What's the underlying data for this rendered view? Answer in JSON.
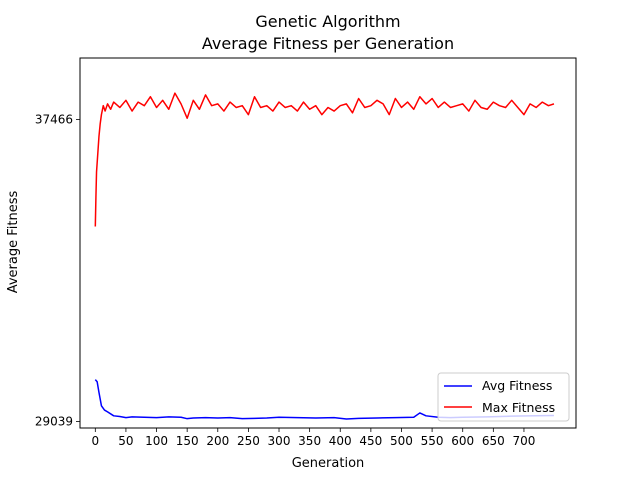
{
  "chart_data": {
    "type": "line",
    "title": "Genetic Algorithm",
    "subtitle": "Average Fitness per Generation",
    "xlabel": "Generation",
    "ylabel": "Average Fitness",
    "xlim": [
      -25,
      785
    ],
    "ylim": [
      28860,
      39180
    ],
    "x_ticks": [
      0,
      50,
      100,
      150,
      200,
      250,
      300,
      350,
      400,
      450,
      500,
      550,
      600,
      650,
      700
    ],
    "x_tick_labels": [
      "0",
      "50",
      "100",
      "150",
      "200",
      "250",
      "300",
      "350",
      "400",
      "450",
      "500",
      "550",
      "600",
      "650",
      "700"
    ],
    "y_ticks": [
      29039,
      37466
    ],
    "y_tick_labels": [
      "29039",
      "37466"
    ],
    "grid": false,
    "legend": "lower-right",
    "series": [
      {
        "name": "Avg Fitness",
        "color": "#0000ff",
        "x": [
          0,
          3,
          6,
          10,
          15,
          20,
          30,
          40,
          50,
          60,
          80,
          100,
          120,
          140,
          150,
          160,
          180,
          200,
          220,
          240,
          260,
          280,
          300,
          330,
          360,
          390,
          410,
          430,
          460,
          490,
          520,
          530,
          540,
          560,
          580,
          600,
          640,
          680,
          720,
          749
        ],
        "y": [
          30210,
          30150,
          29850,
          29480,
          29360,
          29310,
          29200,
          29180,
          29150,
          29170,
          29160,
          29150,
          29170,
          29160,
          29120,
          29140,
          29150,
          29140,
          29150,
          29120,
          29130,
          29140,
          29160,
          29150,
          29140,
          29150,
          29110,
          29130,
          29140,
          29150,
          29160,
          29280,
          29200,
          29160,
          29150,
          29160,
          29170,
          29190,
          29200,
          29210
        ]
      },
      {
        "name": "Max Fitness",
        "color": "#ff0000",
        "x": [
          0,
          1,
          2,
          4,
          6,
          8,
          10,
          13,
          16,
          20,
          25,
          30,
          40,
          50,
          60,
          70,
          80,
          90,
          100,
          110,
          120,
          130,
          140,
          150,
          160,
          170,
          180,
          190,
          200,
          210,
          220,
          230,
          240,
          250,
          260,
          270,
          280,
          290,
          300,
          310,
          320,
          330,
          340,
          350,
          360,
          370,
          380,
          390,
          400,
          410,
          420,
          430,
          440,
          450,
          460,
          470,
          480,
          490,
          500,
          510,
          520,
          530,
          540,
          550,
          560,
          570,
          580,
          590,
          600,
          610,
          620,
          630,
          640,
          650,
          660,
          670,
          680,
          690,
          700,
          710,
          720,
          730,
          740,
          749
        ],
        "y": [
          34480,
          35300,
          36000,
          36500,
          37000,
          37350,
          37600,
          37850,
          37700,
          37900,
          37750,
          37950,
          37800,
          38000,
          37700,
          37950,
          37850,
          38100,
          37800,
          38000,
          37750,
          38200,
          37900,
          37500,
          38000,
          37750,
          38150,
          37850,
          37900,
          37700,
          37950,
          37800,
          37850,
          37600,
          38100,
          37800,
          37850,
          37700,
          37950,
          37800,
          37850,
          37700,
          37950,
          37750,
          37850,
          37600,
          37800,
          37700,
          37850,
          37900,
          37650,
          38050,
          37800,
          37850,
          38000,
          37900,
          37600,
          38050,
          37800,
          37950,
          37750,
          38100,
          37900,
          38050,
          37800,
          37950,
          37800,
          37850,
          37900,
          37700,
          38000,
          37800,
          37750,
          37950,
          37850,
          37800,
          38000,
          37800,
          37600,
          37900,
          37800,
          37950,
          37850,
          37900
        ]
      }
    ]
  }
}
